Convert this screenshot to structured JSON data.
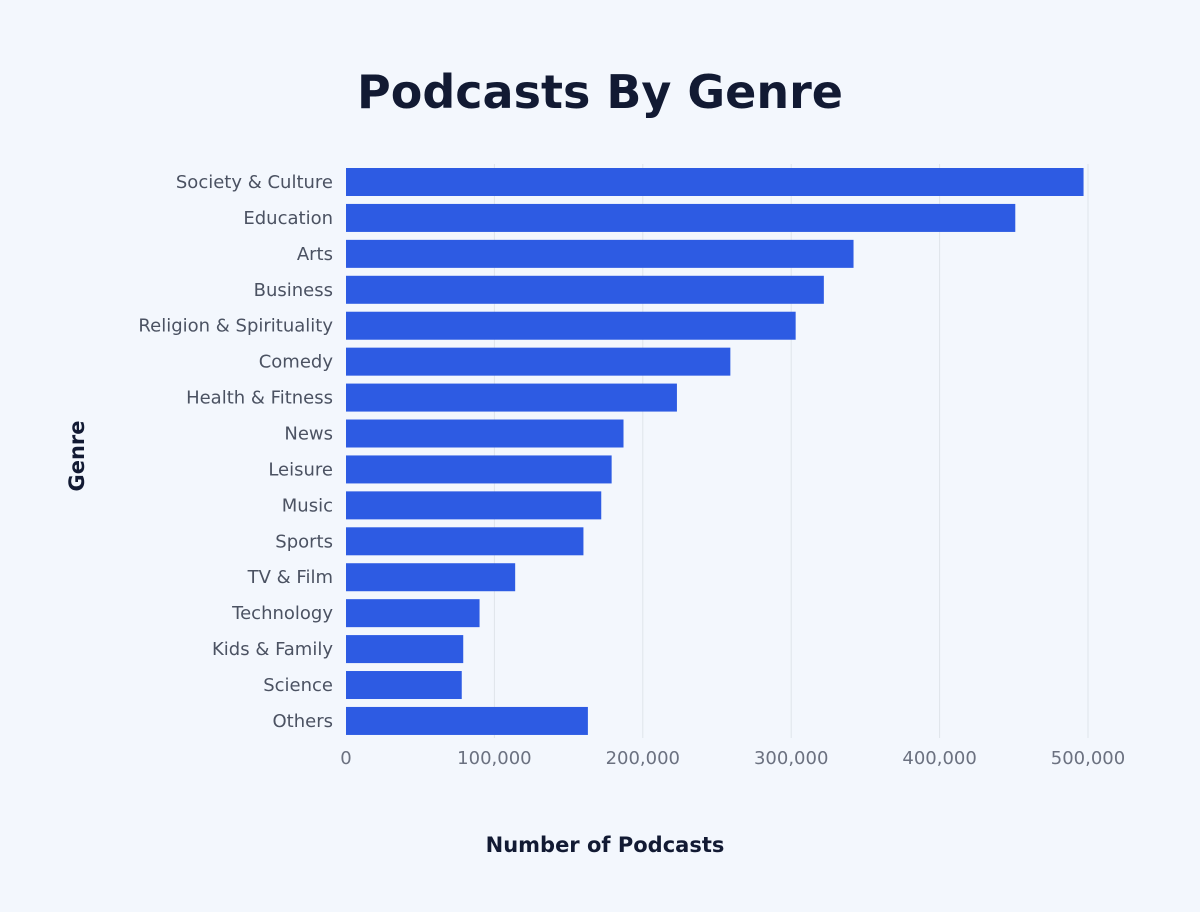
{
  "chart_data": {
    "type": "bar",
    "orientation": "horizontal",
    "title": "Podcasts By Genre",
    "xlabel": "Number of Podcasts",
    "ylabel": "Genre",
    "categories": [
      "Society & Culture",
      "Education",
      "Arts",
      "Business",
      "Religion & Spirituality",
      "Comedy",
      "Health & Fitness",
      "News",
      "Leisure",
      "Music",
      "Sports",
      "TV & Film",
      "Technology",
      "Kids & Family",
      "Science",
      "Others"
    ],
    "values": [
      497000,
      451000,
      342000,
      322000,
      303000,
      259000,
      223000,
      187000,
      179000,
      172000,
      160000,
      114000,
      90000,
      79000,
      78000,
      163000
    ],
    "xlim": [
      0,
      500000
    ],
    "xticks": [
      0,
      100000,
      200000,
      300000,
      400000,
      500000
    ],
    "xtick_labels": [
      "0",
      "100,000",
      "200,000",
      "300,000",
      "400,000",
      "500,000"
    ],
    "grid": true,
    "bar_color": "#2d5be3",
    "grid_color": "#dfe4ea"
  }
}
